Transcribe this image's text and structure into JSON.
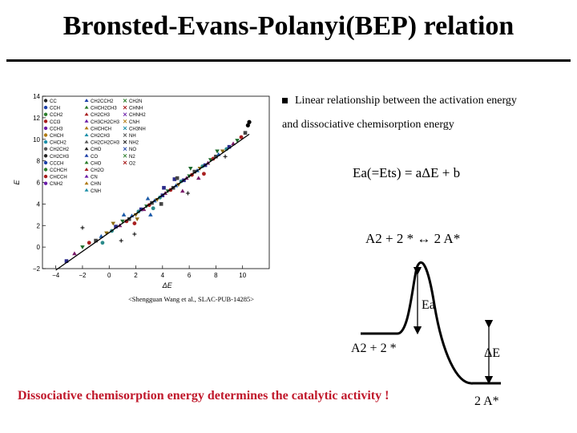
{
  "slide": {
    "title": "Bronsted-Evans-Polanyi(BEP) relation",
    "bullet_line1": "Linear relationship between the activation energy",
    "bullet_line2": "and dissociative chemisorption energy",
    "equation1": "Ea(=Ets) = aΔE + b",
    "equation2": "A2 + 2 * ↔ 2 A*",
    "citation": "<Shengguan Wang et al., SLAC-PUB-14285>",
    "diagram_label_ea": "Ea",
    "diagram_label_reactant": "A2 + 2 *",
    "diagram_label_de": "ΔE",
    "diagram_label_product": "2 A*",
    "conclusion": "Dissociative chemisorption energy determines the catalytic activity !"
  },
  "chart_data": {
    "type": "scatter",
    "xlabel": "ΔE",
    "ylabel": "E",
    "xlim": [
      -5,
      12
    ],
    "ylim": [
      -2,
      14
    ],
    "xticks": [
      "−4",
      "−2",
      "0",
      "2",
      "4",
      "6",
      "8",
      "10"
    ],
    "xtick_values": [
      -4,
      -2,
      0,
      2,
      4,
      6,
      8,
      10
    ],
    "yticks": [
      "−2",
      "0",
      "2",
      "4",
      "6",
      "8",
      "10",
      "12",
      "14"
    ],
    "ytick_values": [
      -2,
      0,
      2,
      4,
      6,
      8,
      10,
      12,
      14
    ],
    "fit_line": {
      "slope": 0.87,
      "intercept": 1.34,
      "x": [
        -4,
        10.5
      ]
    },
    "legend_col1": [
      "CC",
      "CCH",
      "CCH2",
      "CCl3",
      "CCH3",
      "CHCH",
      "CHCH2",
      "CH2CH2",
      "CH2CH3",
      "CCCH",
      "CCHCH",
      "CHCCH",
      "CNH2"
    ],
    "legend_col2": [
      "CH2CCH2",
      "CHCH2CH3",
      "CH2CH3",
      "CH3CH2CH3",
      "CHCHCH",
      "CH2CH3",
      "CH2CH2CH3",
      "CHO",
      "CO",
      "CHO",
      "CH2O",
      "CN",
      "CHN",
      "CNH"
    ],
    "legend_col3": [
      "CH2N",
      "CHNH",
      "CHNH2",
      "CNH",
      "CH3NH",
      "NH",
      "NH2",
      "NO",
      "N2",
      "O2"
    ],
    "series": [
      {
        "name": "points",
        "color": "#333399",
        "points": [
          [
            -3.2,
            -1.3
          ],
          [
            -2.6,
            -0.6
          ],
          [
            -2.0,
            0.0
          ],
          [
            -1.5,
            0.4
          ],
          [
            -1.0,
            0.6
          ],
          [
            -0.6,
            1.0
          ],
          [
            -0.2,
            1.3
          ],
          [
            0.2,
            1.5
          ],
          [
            0.5,
            1.9
          ],
          [
            0.8,
            2.0
          ],
          [
            1.0,
            2.4
          ],
          [
            1.3,
            2.4
          ],
          [
            1.5,
            2.6
          ],
          [
            1.7,
            2.9
          ],
          [
            2.0,
            3.0
          ],
          [
            2.2,
            3.3
          ],
          [
            2.4,
            3.5
          ],
          [
            2.6,
            3.5
          ],
          [
            2.8,
            3.8
          ],
          [
            3.0,
            3.9
          ],
          [
            3.2,
            4.1
          ],
          [
            3.4,
            4.3
          ],
          [
            3.6,
            4.4
          ],
          [
            3.8,
            4.6
          ],
          [
            4.0,
            4.8
          ],
          [
            4.2,
            5.0
          ],
          [
            4.4,
            5.2
          ],
          [
            4.6,
            5.3
          ],
          [
            4.8,
            5.5
          ],
          [
            5.0,
            5.7
          ],
          [
            5.2,
            5.8
          ],
          [
            5.4,
            6.1
          ],
          [
            5.6,
            6.2
          ],
          [
            5.8,
            6.4
          ],
          [
            6.0,
            6.6
          ],
          [
            6.2,
            6.7
          ],
          [
            6.4,
            7.0
          ],
          [
            6.6,
            7.1
          ],
          [
            6.8,
            7.3
          ],
          [
            7.0,
            7.5
          ],
          [
            7.2,
            7.6
          ],
          [
            7.4,
            7.8
          ],
          [
            7.6,
            8.1
          ],
          [
            7.8,
            8.2
          ],
          [
            8.0,
            8.4
          ],
          [
            8.2,
            8.6
          ],
          [
            8.5,
            8.9
          ],
          [
            8.8,
            9.1
          ],
          [
            9.0,
            9.3
          ],
          [
            9.3,
            9.6
          ],
          [
            9.6,
            9.9
          ],
          [
            9.9,
            10.2
          ],
          [
            10.2,
            10.6
          ],
          [
            1.1,
            3.0
          ],
          [
            2.1,
            2.6
          ],
          [
            3.3,
            3.6
          ],
          [
            4.1,
            5.5
          ],
          [
            5.5,
            5.2
          ],
          [
            6.1,
            7.3
          ],
          [
            7.1,
            6.8
          ],
          [
            3.9,
            4.0
          ],
          [
            2.9,
            4.5
          ],
          [
            0.3,
            2.2
          ],
          [
            -0.5,
            0.4
          ],
          [
            4.9,
            6.3
          ],
          [
            6.7,
            6.4
          ],
          [
            8.1,
            8.9
          ],
          [
            1.9,
            2.2
          ],
          [
            5.1,
            6.4
          ],
          [
            3.1,
            3.0
          ]
        ]
      },
      {
        "name": "outliers",
        "color": "#000000",
        "points": [
          [
            -2.0,
            1.8
          ],
          [
            10.5,
            11.6
          ],
          [
            10.4,
            11.3
          ],
          [
            0.9,
            0.6
          ],
          [
            1.9,
            1.2
          ],
          [
            5.9,
            5.0
          ],
          [
            8.7,
            8.4
          ]
        ]
      }
    ]
  }
}
